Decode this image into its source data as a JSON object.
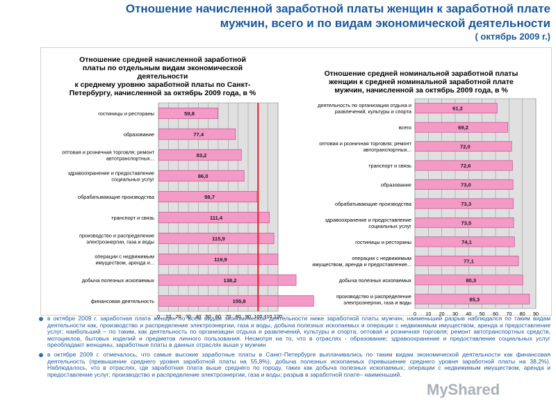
{
  "header": {
    "line1": "Отношение начисленной заработной платы женщин к заработной плате",
    "line2": "мужчин, всего и по видам экономической деятельности",
    "line3": "( октябрь 2009 г.)"
  },
  "chart_data": [
    {
      "type": "bar",
      "orientation": "horizontal",
      "title_lines": [
        "Отношение  средней начисленной заработной",
        "платы по отдельным видам экономической",
        "деятельности",
        "к среднему уровню заработной платы по Санкт-",
        "Петербургу,  начисленной за октябрь 2009 года, в %"
      ],
      "categories": [
        [
          "гостиницы и рестораны"
        ],
        [
          "образование"
        ],
        [
          "оптовая и розничная торговля; ремонт",
          "автотранспортных..."
        ],
        [
          "здравоохранение и предоставление",
          "социальных услуг"
        ],
        [
          "обрабатывающие производства"
        ],
        [
          "транспорт и связь"
        ],
        [
          "производство и распределение",
          "электроэнергии, газа и воды"
        ],
        [
          "операции с недвижимым",
          "имуществом, аренда и..."
        ],
        [
          "добыча полезных ископаемых"
        ],
        [
          "финансовая деятельность"
        ]
      ],
      "values": [
        59.8,
        77.4,
        83.2,
        86.0,
        98.7,
        111.4,
        115.9,
        119.9,
        138.2,
        155.8
      ],
      "value_labels": [
        "59,8",
        "77,4",
        "83,2",
        "86,0",
        "98,7",
        "111,4",
        "115,9",
        "119,9",
        "138,2",
        "155,8"
      ],
      "xlim": [
        0,
        120
      ],
      "xticks": [
        "0",
        "10",
        "20",
        "30",
        "40",
        "50",
        "60",
        "70",
        "80",
        "90",
        "100",
        "110",
        "120"
      ],
      "reference_line": 100,
      "grid": true,
      "legend": "none"
    },
    {
      "type": "bar",
      "orientation": "horizontal",
      "title_lines": [
        "Отношение  средней номинальной заработной платы",
        "женщин к средней номинальной заработной плате",
        "мужчин,  начисленной за октябрь 2009 года, в %"
      ],
      "categories": [
        [
          "деятельность по организации отдыха и",
          "развлечений, культуры и спорта"
        ],
        [
          "всего"
        ],
        [
          "оптовая и розничная торговля; ремонт",
          "автотранспортных..."
        ],
        [
          "транспорт и связь"
        ],
        [
          "образование"
        ],
        [
          "обрабатывающие производства"
        ],
        [
          "здравоохранение и предоставление",
          "социальных услуг"
        ],
        [
          "гостиницы и рестораны"
        ],
        [
          "операции с недвижимым",
          "имуществом, аренда и предоставление..."
        ],
        [
          "добыча полезных ископаемых"
        ],
        [
          "производство и распределение",
          "электроэнергии, газа и воды"
        ]
      ],
      "values": [
        61.2,
        69.2,
        72.0,
        72.6,
        73.0,
        73.3,
        73.5,
        74.1,
        77.1,
        80.3,
        85.3
      ],
      "value_labels": [
        "61,2",
        "69,2",
        "72,0",
        "72,6",
        "73,0",
        "73,3",
        "73,5",
        "74,1",
        "77,1",
        "80,3",
        "85,3"
      ],
      "xlim": [
        0,
        90
      ],
      "xticks": [
        "0",
        "10",
        "20",
        "30",
        "40",
        "50",
        "60",
        "70",
        "80",
        "90"
      ],
      "grid": true,
      "legend": "none"
    }
  ],
  "notes": [
    "в октябре 2009 г. заработная плата женщин по всем видам экономической деятельности ниже заработной платы мужчин, наименьший разрыв наблюдался по таким видам деятельности как, производство и распределение электроэнергии, газа и воды, добыча полезных ископаемых и операции с недвижимым имуществом, аренда и предоставление услуг; наибольший – по таким, как деятельность по организации отдыха и развлечений, культуры и спорта; оптовая и розничная торговля; ремонт автотранспортных средств, мотоциклов, бытовых изделий и предметов личного пользования. Несмотря на то, что в отраслях  - образование; здравоохранение и предоставление социальных услуг преобладают женщины, заработные платы в данных отраслях выше у мужчин",
    "в октябре 2009 г. отмечалось, что самые высокие заработные платы в Санкт-Петербурге выплачивались по таким видам экономической деятельности как финансовая деятельность  (превышение  среднего уровня заработной платы на 55,8%), добыча полезных ископаемых (превышение среднего уровня заработной платы на 38,2%). Наблюдалось, что в отраслях, где заработная плата выше среднего по городу, таких как добыча полезных ископаемых; операции с недвижимым имуществом, аренда и предоставление услуг; производство и распределение электроэнергии, газа и воды; разрыв в заработной плате– наименьший."
  ],
  "watermark": "MyShared",
  "colors": {
    "title": "#17579e",
    "bar_fill": "#f49ac6",
    "bar_stroke": "#b5467f",
    "plot_bg": "#e0e0e0",
    "reference_line": "#e02020",
    "notes_text": "#17579e"
  }
}
